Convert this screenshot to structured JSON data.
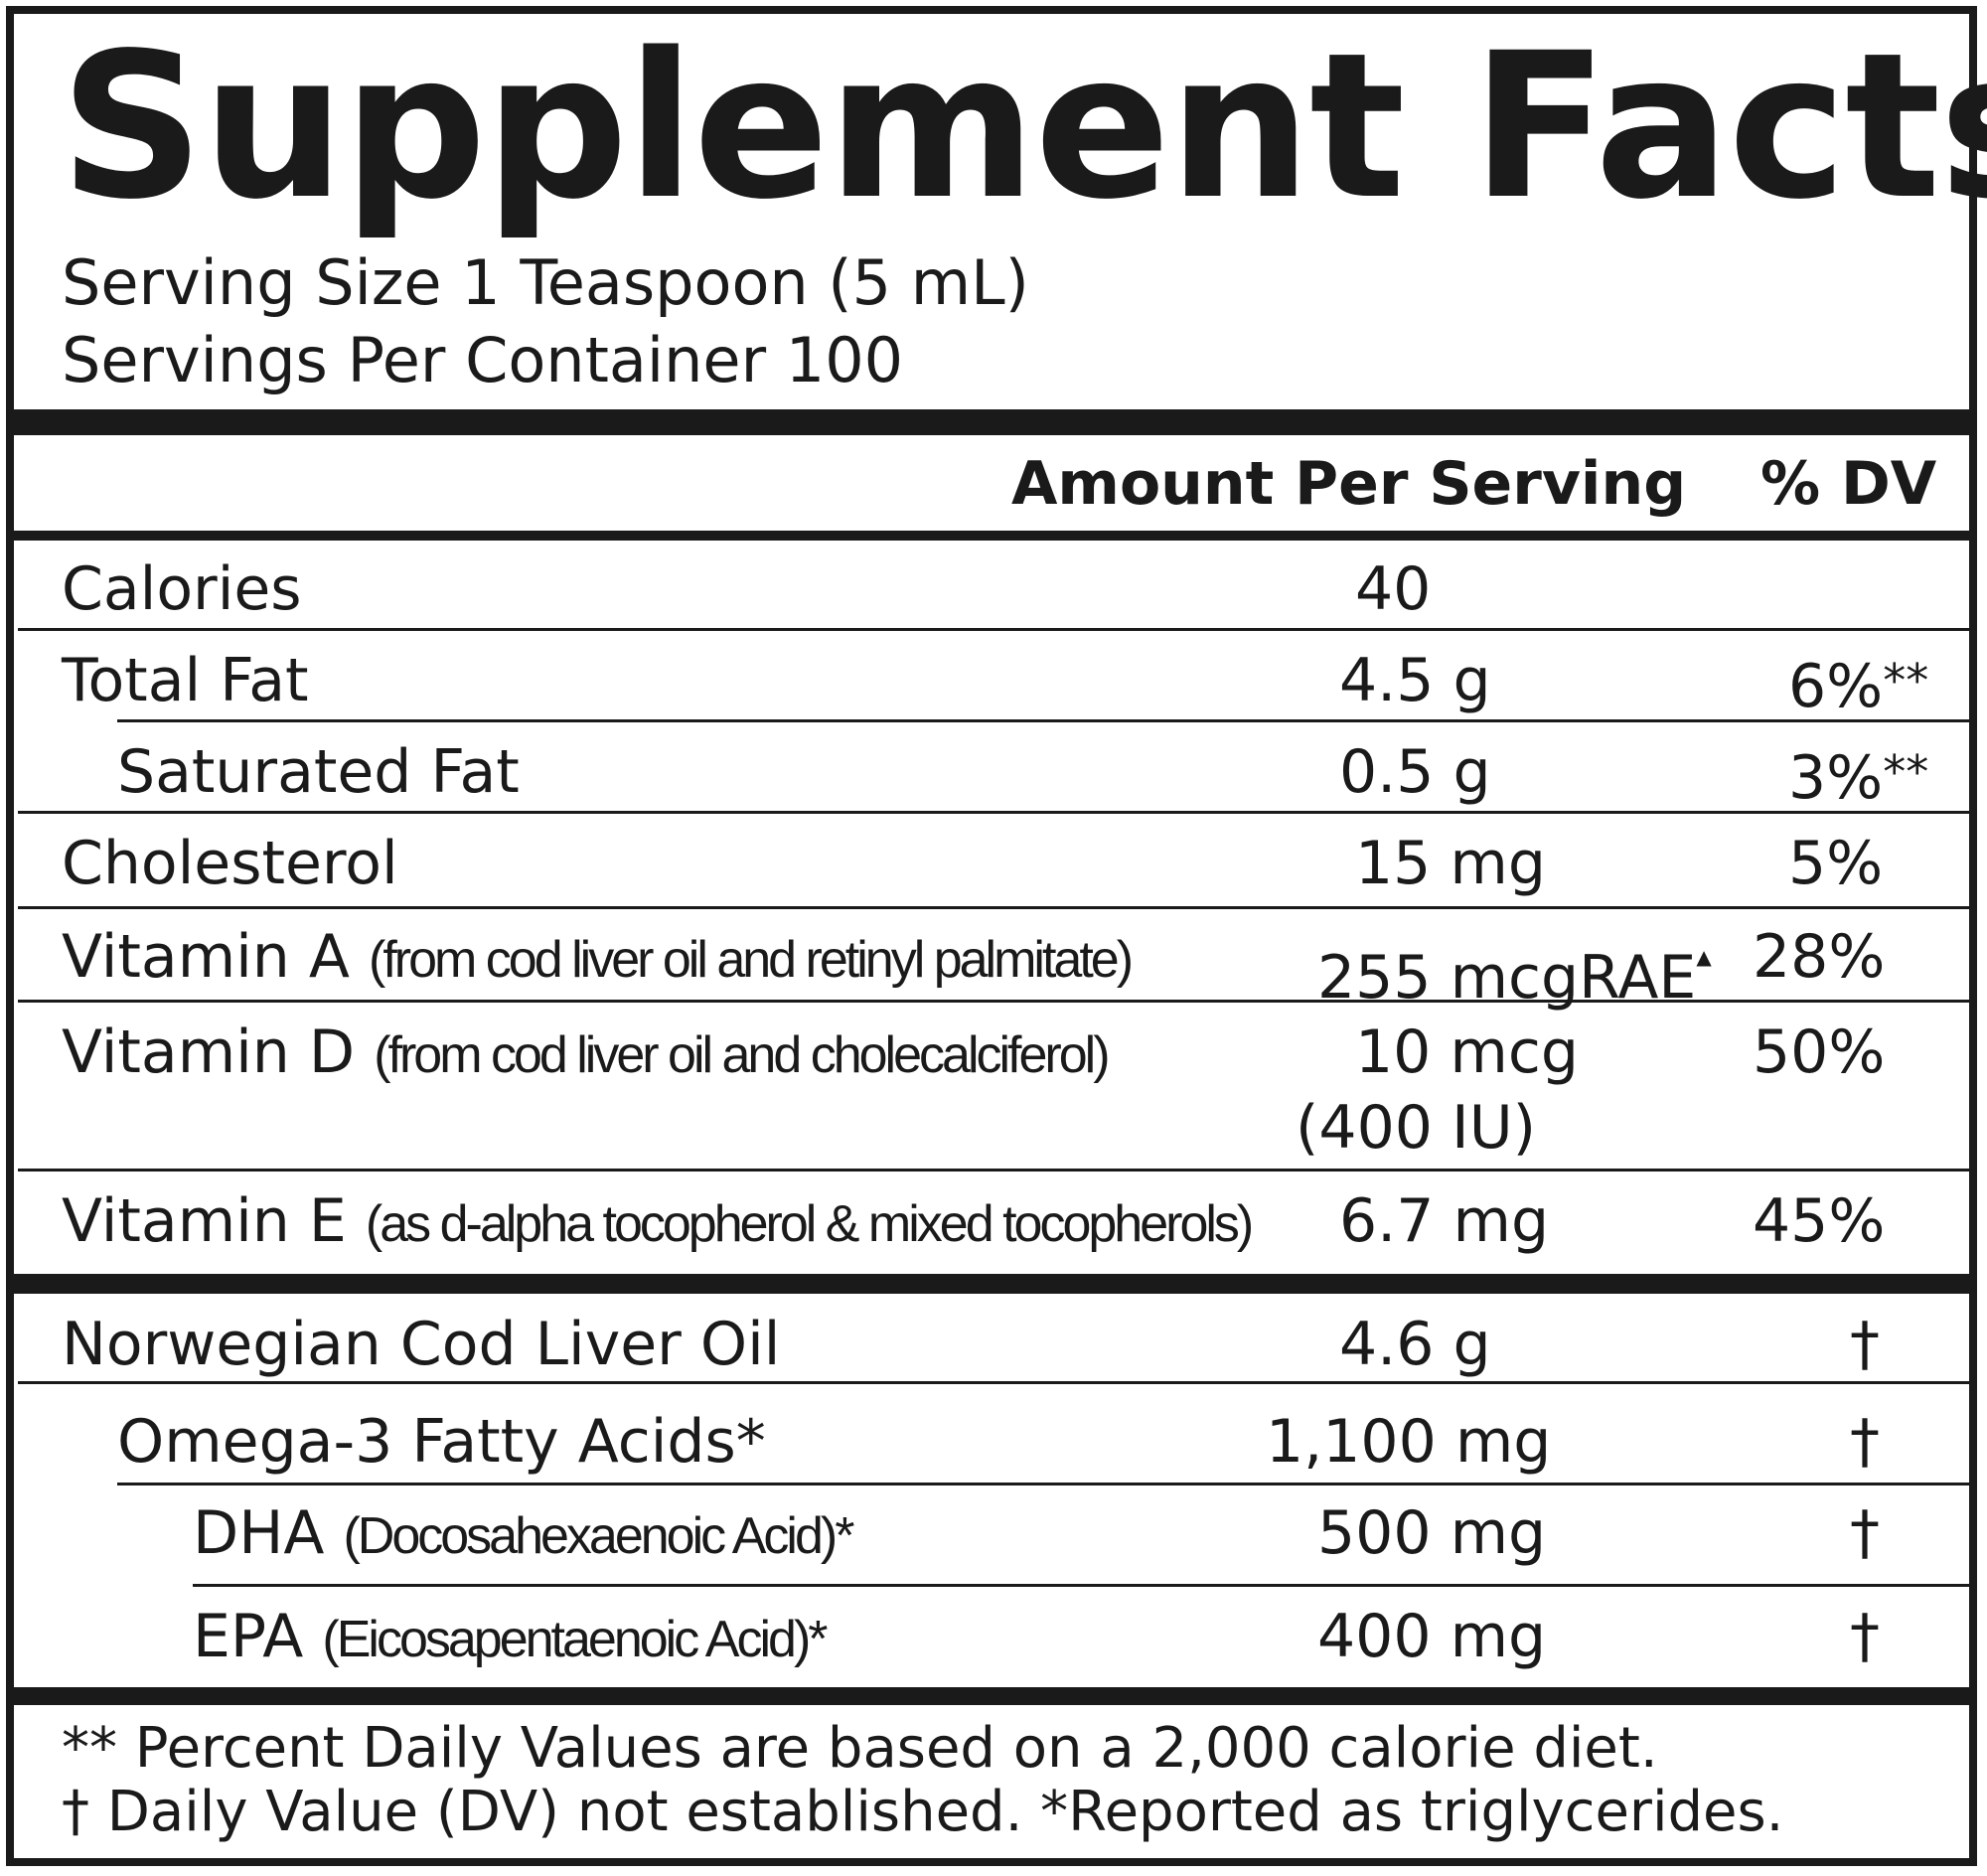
{
  "title": "Supplement Facts",
  "serving_size": "Serving Size 1 Teaspoon (5 mL)",
  "servings_per_container": "Servings Per Container 100",
  "header": {
    "amount": "Amount Per Serving",
    "dv": "% DV"
  },
  "rows": [
    {
      "name": "Calories",
      "detail": "",
      "amount": "40",
      "amount2": "",
      "dv": "",
      "mark": ""
    },
    {
      "name": "Total Fat",
      "detail": "",
      "amount": "4.5 g",
      "amount2": "",
      "dv": "6%",
      "mark": "**"
    },
    {
      "name": "Saturated Fat",
      "detail": "",
      "amount": "0.5 g",
      "amount2": "",
      "dv": "3%",
      "mark": "**"
    },
    {
      "name": "Cholesterol",
      "detail": "",
      "amount": "15 mg",
      "amount2": "",
      "dv": "5%",
      "mark": ""
    },
    {
      "name": "Vitamin A",
      "detail": "(from cod liver oil and retinyl palmitate)",
      "amount": "255 mcgRAE",
      "amount_sup": "▲",
      "amount2": "",
      "dv": "28%",
      "mark": ""
    },
    {
      "name": "Vitamin D",
      "detail": "(from cod liver oil and cholecalciferol)",
      "amount": "10 mcg",
      "amount2": "(400 IU)",
      "dv": "50%",
      "mark": ""
    },
    {
      "name": "Vitamin E",
      "detail": "(as d-alpha tocopherol & mixed tocopherols)",
      "amount": "6.7 mg",
      "amount2": "",
      "dv": "45%",
      "mark": ""
    }
  ],
  "oil_rows": [
    {
      "name": "Norwegian Cod Liver Oil",
      "detail": "",
      "amount": "4.6 g",
      "dv": "†"
    },
    {
      "name": "Omega-3 Fatty Acids*",
      "detail": "",
      "amount": "1,100 mg",
      "dv": "†"
    },
    {
      "name": "DHA",
      "detail": "(Docosahexaenoic Acid)*",
      "amount": "500 mg",
      "dv": "†"
    },
    {
      "name": "EPA",
      "detail": "(Eicosapentaenoic Acid)*",
      "amount": "400 mg",
      "dv": "†"
    }
  ],
  "footnotes": {
    "line1": "** Percent Daily Values are based on a 2,000 calorie diet.",
    "line2": "† Daily Value (DV) not established. *Reported as triglycerides."
  }
}
